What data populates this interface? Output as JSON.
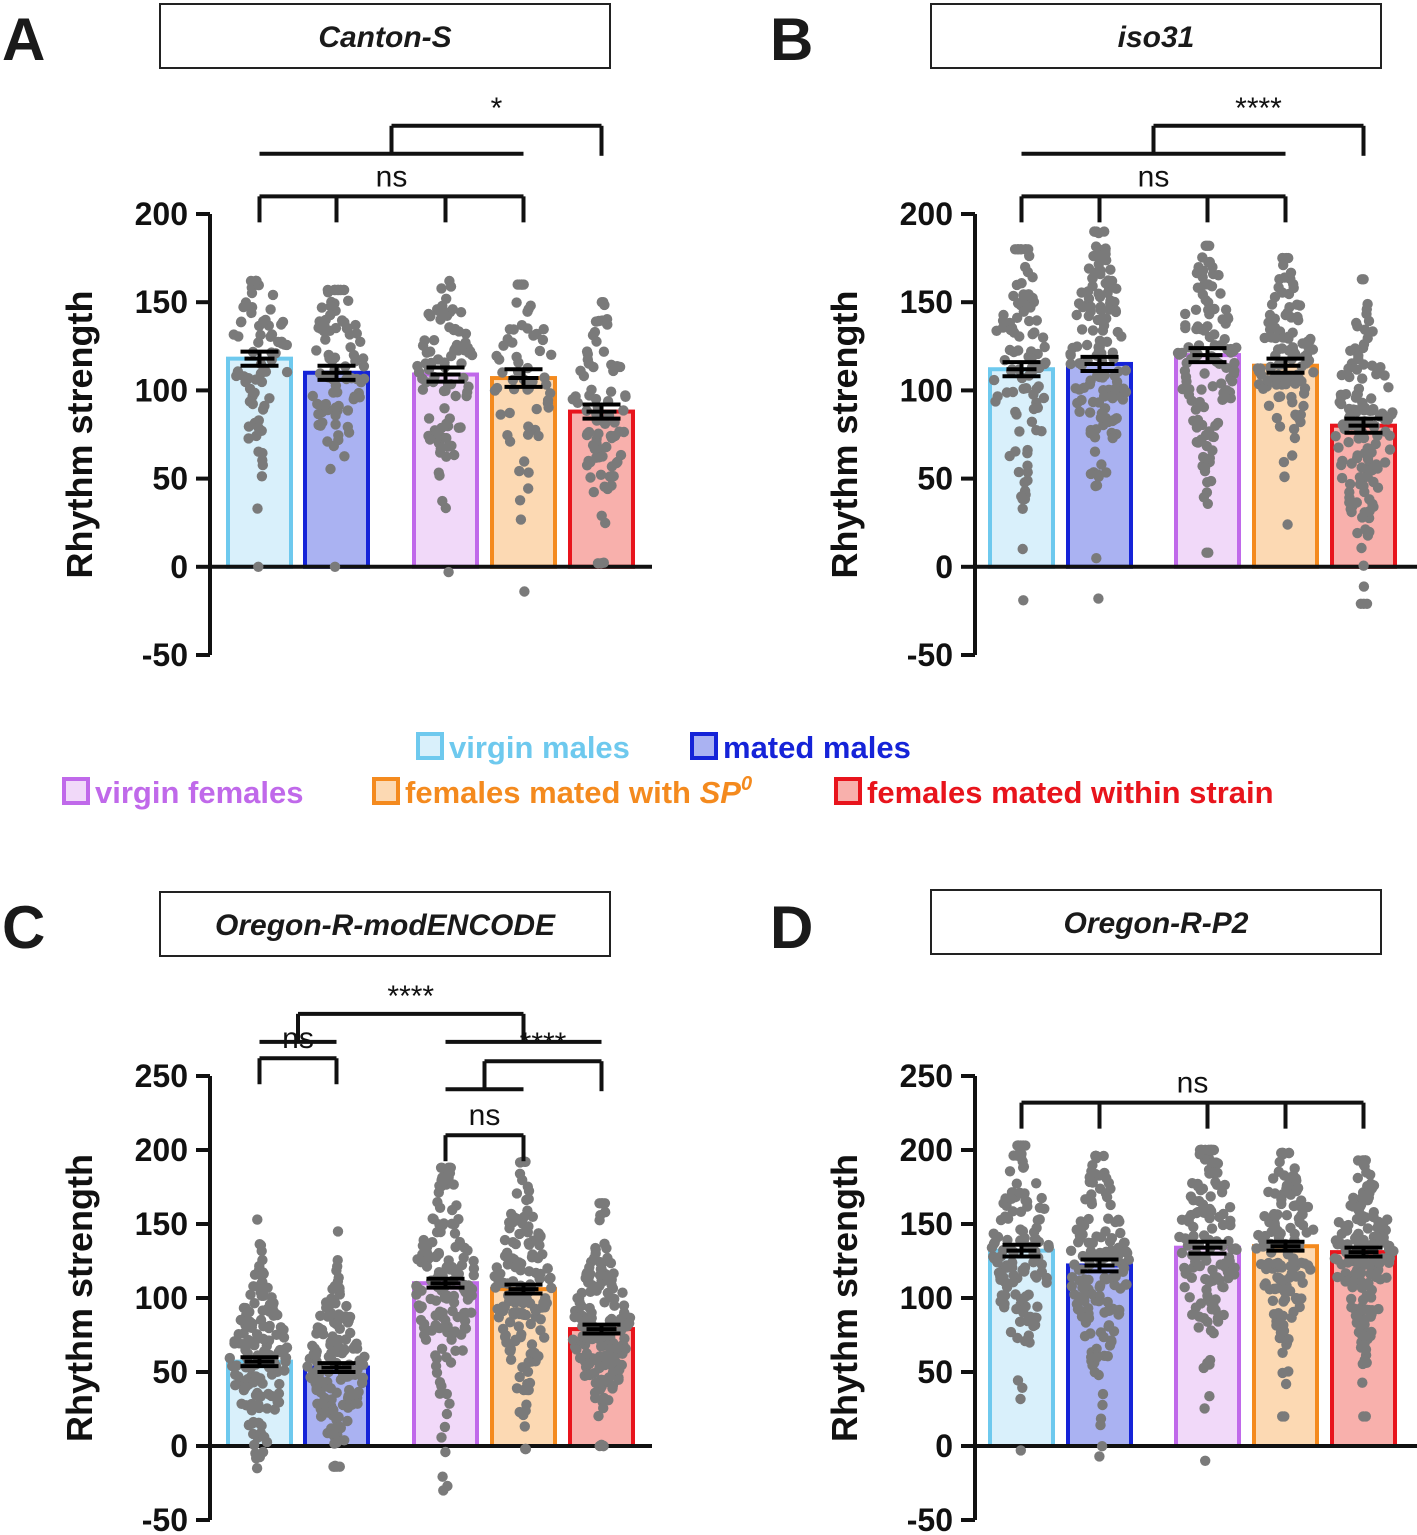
{
  "legend": {
    "colors": {
      "virgin_males": {
        "fill": "#d9f0fb",
        "stroke": "#6ec9ee",
        "text": "#6ec9ee"
      },
      "mated_males": {
        "fill": "#aab2f2",
        "stroke": "#1523d8",
        "text": "#1523d8"
      },
      "virgin_females": {
        "fill": "#f1d9f9",
        "stroke": "#c069ea",
        "text": "#c069ea"
      },
      "females_mated_SP0": {
        "fill": "#fcd9b3",
        "stroke": "#f48a1e",
        "text": "#f48a1e"
      },
      "females_mated_within": {
        "fill": "#f8b0ac",
        "stroke": "#e8141c",
        "text": "#e8141c"
      }
    },
    "row1": [
      {
        "key": "virgin_males",
        "label": "virgin males"
      },
      {
        "key": "mated_males",
        "label": "mated males"
      }
    ],
    "row2": [
      {
        "key": "virgin_females",
        "label": "virgin females"
      },
      {
        "key": "females_mated_SP0",
        "label": "females mated with ",
        "italic": "SP",
        "sup": "0"
      },
      {
        "key": "females_mated_within",
        "label": "females mated within strain"
      }
    ]
  },
  "chart_data": [
    {
      "type": "bar",
      "panel": "A",
      "title": "Canton-S",
      "ylabel": "Rhythm strength",
      "ylim": [
        -50,
        200
      ],
      "yticks": [
        -50,
        0,
        50,
        100,
        150,
        200
      ],
      "categories": [
        "virgin males",
        "mated males",
        "virgin females",
        "females mated with SP0",
        "females mated within strain"
      ],
      "values": [
        118,
        110,
        109,
        107,
        88
      ],
      "sem": [
        4,
        4,
        4,
        5,
        4
      ],
      "n_points": [
        70,
        90,
        90,
        60,
        80
      ],
      "range": [
        [
          0,
          162
        ],
        [
          0,
          157
        ],
        [
          -3,
          162
        ],
        [
          -14,
          160
        ],
        [
          2,
          150
        ]
      ],
      "significance": [
        {
          "label": "ns",
          "type": "multi",
          "groups": [
            0,
            1,
            2,
            3
          ],
          "y": 210
        },
        {
          "label": "*",
          "type": "grouped",
          "left": [
            0,
            3
          ],
          "right": [
            4
          ],
          "y": 250
        }
      ]
    },
    {
      "type": "bar",
      "panel": "B",
      "title": "iso31",
      "ylabel": "Rhythm strength",
      "ylim": [
        -50,
        200
      ],
      "yticks": [
        -50,
        0,
        50,
        100,
        150,
        200
      ],
      "categories": [
        "virgin males",
        "mated males",
        "virgin females",
        "females mated with SP0",
        "females mated within strain"
      ],
      "values": [
        112,
        115,
        120,
        114,
        80
      ],
      "sem": [
        4,
        4,
        4,
        4,
        4
      ],
      "n_points": [
        100,
        140,
        120,
        110,
        130
      ],
      "range": [
        [
          -19,
          180
        ],
        [
          -18,
          190
        ],
        [
          8,
          182
        ],
        [
          24,
          175
        ],
        [
          -21,
          163
        ]
      ],
      "significance": [
        {
          "label": "ns",
          "type": "multi",
          "groups": [
            0,
            1,
            2,
            3
          ],
          "y": 210
        },
        {
          "label": "****",
          "type": "grouped",
          "left": [
            0,
            3
          ],
          "right": [
            4
          ],
          "y": 250
        }
      ]
    },
    {
      "type": "bar",
      "panel": "C",
      "title": "Oregon-R-modENCODE",
      "ylabel": "Rhythm strength",
      "ylim": [
        -50,
        250
      ],
      "yticks": [
        -50,
        0,
        50,
        100,
        150,
        200,
        250
      ],
      "categories": [
        "virgin males",
        "mated males",
        "virgin females",
        "females mated with SP0",
        "females mated within strain"
      ],
      "values": [
        57,
        53,
        110,
        106,
        79
      ],
      "sem": [
        3,
        3,
        3,
        3,
        3
      ],
      "n_points": [
        150,
        150,
        150,
        150,
        160
      ],
      "range": [
        [
          -15,
          153
        ],
        [
          -14,
          145
        ],
        [
          -30,
          188
        ],
        [
          -2,
          192
        ],
        [
          0,
          164
        ]
      ],
      "significance": [
        {
          "label": "ns",
          "type": "multi",
          "groups": [
            0,
            1
          ],
          "y": 262
        },
        {
          "label": "ns",
          "type": "multi",
          "groups": [
            2,
            3
          ],
          "y": 210
        },
        {
          "label": "****",
          "type": "grouped",
          "left": [
            2,
            3
          ],
          "right": [
            4
          ],
          "y": 260
        },
        {
          "label": "****",
          "type": "grouped",
          "left": [
            0,
            1
          ],
          "right": [
            2,
            4
          ],
          "y": 292
        }
      ]
    },
    {
      "type": "bar",
      "panel": "D",
      "title": "Oregon-R-P2",
      "ylabel": "Rhythm strength",
      "ylim": [
        -50,
        250
      ],
      "yticks": [
        -50,
        0,
        50,
        100,
        150,
        200,
        250
      ],
      "categories": [
        "virgin males",
        "mated males",
        "virgin females",
        "females mated with SP0",
        "females mated within strain"
      ],
      "values": [
        132,
        122,
        134,
        135,
        131
      ],
      "sem": [
        4,
        4,
        4,
        3,
        3
      ],
      "n_points": [
        130,
        150,
        140,
        150,
        160
      ],
      "range": [
        [
          -3,
          203
        ],
        [
          -7,
          196
        ],
        [
          -10,
          200
        ],
        [
          20,
          198
        ],
        [
          20,
          193
        ]
      ],
      "significance": [
        {
          "label": "ns",
          "type": "multi",
          "groups": [
            0,
            1,
            2,
            3,
            4
          ],
          "y": 232
        }
      ]
    }
  ]
}
